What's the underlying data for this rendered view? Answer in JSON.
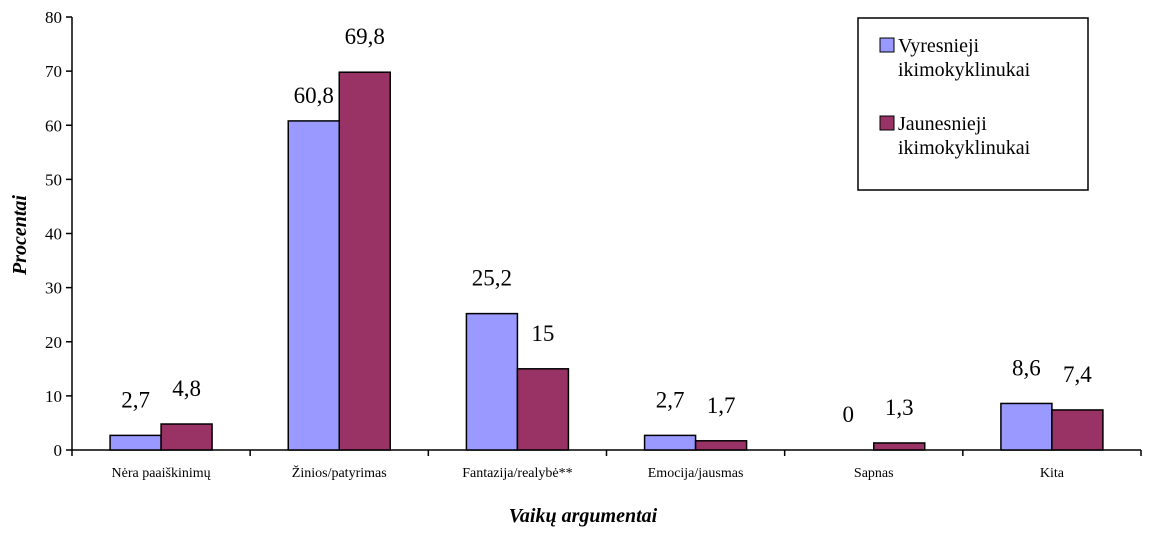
{
  "chart_data": {
    "type": "bar",
    "categories": [
      "Nėra paaiškinimų",
      "Žinios/patyrimas",
      "Fantazija/realybė**",
      "Emocija/jausmas",
      "Sapnas",
      "Kita"
    ],
    "series": [
      {
        "name": "Vyresnieji ikimokyklinukai",
        "values": [
          2.7,
          60.8,
          25.2,
          2.7,
          0,
          8.6
        ],
        "labels": [
          "2,7",
          "60,8",
          "25,2",
          "2,7",
          "0",
          "8,6"
        ],
        "color": "#9999ff"
      },
      {
        "name": "Jaunesnieji ikimokyklinukai",
        "values": [
          4.8,
          69.8,
          15,
          1.7,
          1.3,
          7.4
        ],
        "labels": [
          "4,8",
          "69,8",
          "15",
          "1,7",
          "1,3",
          "7,4"
        ],
        "color": "#993366"
      }
    ],
    "legend_lines": [
      [
        "Vyresnieji",
        "ikimokyklinukai"
      ],
      [
        "Jaunesnieji",
        "ikimokyklinukai"
      ]
    ],
    "xlabel": "Vaikų argumentai",
    "ylabel": "Procentai",
    "ylim": [
      0,
      80
    ],
    "yticks": [
      "0",
      "10",
      "20",
      "30",
      "40",
      "50",
      "60",
      "70",
      "80"
    ],
    "grid": false,
    "legend_position": "top-right"
  }
}
